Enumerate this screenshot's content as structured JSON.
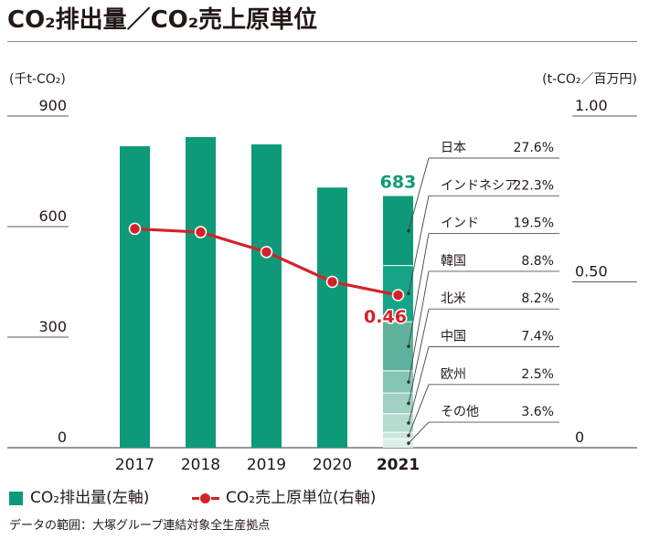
{
  "chart_data": {
    "type": "bar",
    "title": "CO₂排出量／CO₂売上原単位",
    "categories": [
      "2017",
      "2018",
      "2019",
      "2020",
      "2021"
    ],
    "series": [
      {
        "name": "CO₂排出量(左軸)",
        "type": "bar",
        "axis": "left",
        "values": [
          818,
          843,
          823,
          706,
          683
        ],
        "value_labels": [
          "",
          "",
          "",
          "",
          "683"
        ],
        "color": "#0e9a78"
      },
      {
        "name": "CO₂売上原単位(右軸)",
        "type": "line",
        "axis": "right",
        "values": [
          0.66,
          0.65,
          0.59,
          0.5,
          0.46
        ],
        "value_labels": [
          "",
          "",
          "",
          "",
          "0.46"
        ],
        "color": "#d2232a"
      }
    ],
    "y_left": {
      "label": "(千t-CO₂)",
      "range": [
        0,
        900
      ],
      "ticks": [
        0,
        300,
        600,
        900
      ],
      "tick_labels": [
        "0",
        "300",
        "600",
        "900"
      ]
    },
    "y_right": {
      "label": "(t-CO₂／百万円)",
      "range": [
        0,
        1.0
      ],
      "ticks": [
        0,
        0.5,
        1.0
      ],
      "tick_labels": [
        "0",
        "0.50",
        "1.00"
      ]
    },
    "breakdown_2021": [
      {
        "name": "日本",
        "share": 27.6,
        "label": "27.6%",
        "color": "#0e9a78"
      },
      {
        "name": "インドネシア",
        "share": 22.3,
        "label": "22.3%",
        "color": "#16a488"
      },
      {
        "name": "インド",
        "share": 19.5,
        "label": "19.5%",
        "color": "#5fb39d"
      },
      {
        "name": "韓国",
        "share": 8.8,
        "label": "8.8%",
        "color": "#86c5b3"
      },
      {
        "name": "北米",
        "share": 8.2,
        "label": "8.2%",
        "color": "#9fd0c2"
      },
      {
        "name": "中国",
        "share": 7.4,
        "label": "7.4%",
        "color": "#b5dbcf"
      },
      {
        "name": "欧州",
        "share": 2.5,
        "label": "2.5%",
        "color": "#c9e5dc"
      },
      {
        "name": "その他",
        "share": 3.6,
        "label": "3.6%",
        "color": "#dcefe8"
      }
    ],
    "legend_position": "bottom-left",
    "grid": false
  },
  "footnote": "データの範囲：大塚グループ連結対象全生産拠点"
}
